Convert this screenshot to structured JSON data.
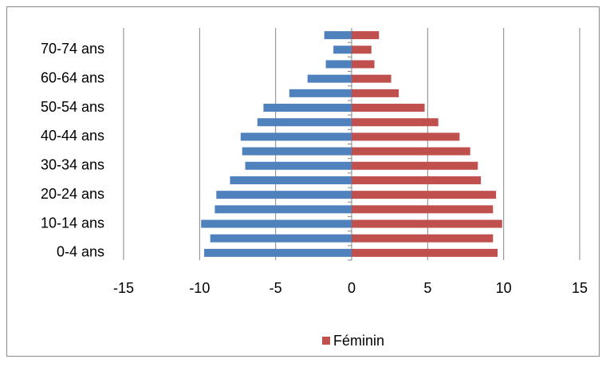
{
  "chart_data": {
    "type": "bar",
    "orientation": "horizontal",
    "categories": [
      "0-4 ans",
      null,
      "10-14 ans",
      null,
      "20-24 ans",
      null,
      "30-34 ans",
      null,
      "40-44 ans",
      null,
      "50-54 ans",
      null,
      "60-64 ans",
      null,
      "70-74 ans",
      null
    ],
    "series": [
      {
        "color": "#4f81bd",
        "values": [
          -9.7,
          -9.3,
          -9.9,
          -9.0,
          -8.9,
          -8.0,
          -7.0,
          -7.2,
          -7.3,
          -6.2,
          -5.8,
          -4.1,
          -2.9,
          -1.7,
          -1.2,
          -1.8
        ]
      },
      {
        "name": "Féminin",
        "color": "#c0504d",
        "values": [
          9.6,
          9.3,
          9.9,
          9.3,
          9.5,
          8.5,
          8.3,
          7.8,
          7.1,
          5.7,
          4.8,
          3.1,
          2.6,
          1.5,
          1.3,
          1.8
        ]
      }
    ],
    "xlim": [
      -15,
      15
    ],
    "xticks": [
      -15,
      -10,
      -5,
      0,
      5,
      10,
      15
    ],
    "grid": true,
    "legend": "bottom"
  }
}
